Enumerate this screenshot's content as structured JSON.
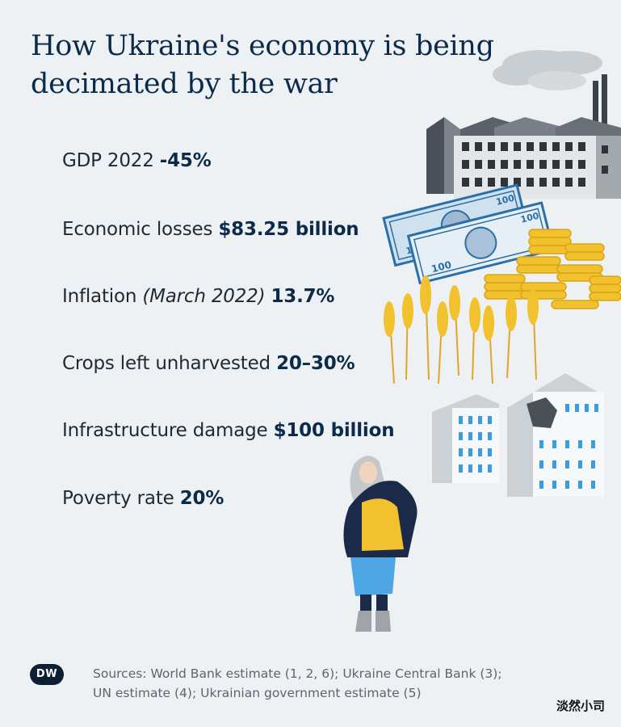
{
  "title": "How Ukraine's economy is being decimated by the war",
  "stats": [
    {
      "label": "GDP 2022",
      "value": "-45%"
    },
    {
      "label": "Economic losses",
      "value": "$83.25 billion"
    },
    {
      "label": "Inflation",
      "note": "(March 2022)",
      "value": "13.7%"
    },
    {
      "label": "Crops left unharvested",
      "value": "20–30%"
    },
    {
      "label": "Infrastructure damage",
      "value": "$100 billion"
    },
    {
      "label": "Poverty rate",
      "value": "20%"
    }
  ],
  "banknote_label": "100",
  "logo_text": "DW",
  "sources_line1": "Sources: World Bank estimate (1, 2, 6); Ukraine Central Bank (3);",
  "sources_line2": "UN estimate (4); Ukrainian government estimate (5)",
  "watermark": "淡然小司",
  "colors": {
    "title": "#0c2b4b",
    "background": "#eef1f3",
    "accent_yellow": "#f2c12e",
    "accent_blue": "#3d9be0",
    "money_blue": "#2a6fa8"
  }
}
